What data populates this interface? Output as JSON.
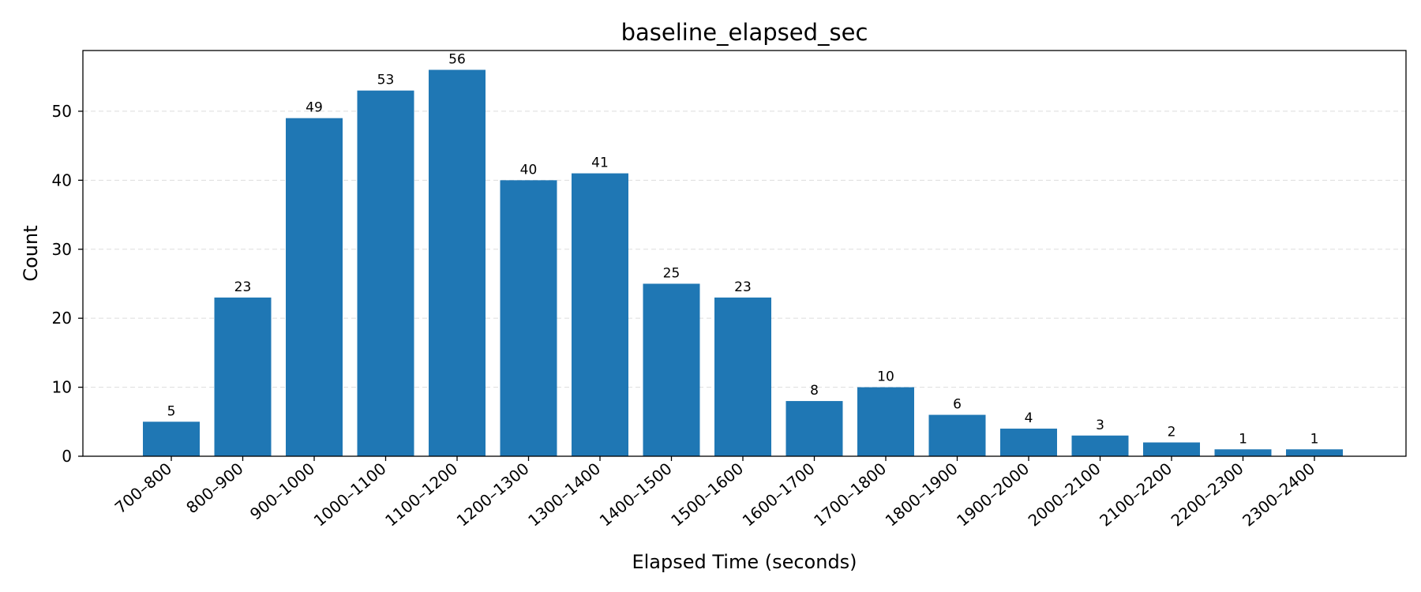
{
  "chart_data": {
    "type": "bar",
    "title": "baseline_elapsed_sec",
    "xlabel": "Elapsed Time (seconds)",
    "ylabel": "Count",
    "categories": [
      "700–800",
      "800–900",
      "900–1000",
      "1000–1100",
      "1100–1200",
      "1200–1300",
      "1300–1400",
      "1400–1500",
      "1500–1600",
      "1600–1700",
      "1700–1800",
      "1800–1900",
      "1900–2000",
      "2000–2100",
      "2100–2200",
      "2200–2300",
      "2300–2400"
    ],
    "values": [
      5,
      23,
      49,
      53,
      56,
      40,
      41,
      25,
      23,
      8,
      10,
      6,
      4,
      3,
      2,
      1,
      1
    ],
    "ylim": [
      0,
      58.8
    ],
    "yticks": [
      0,
      10,
      20,
      30,
      40,
      50
    ],
    "grid": "y-dashed",
    "bar_color": "#1f77b4",
    "grid_color": "#dddddd"
  }
}
